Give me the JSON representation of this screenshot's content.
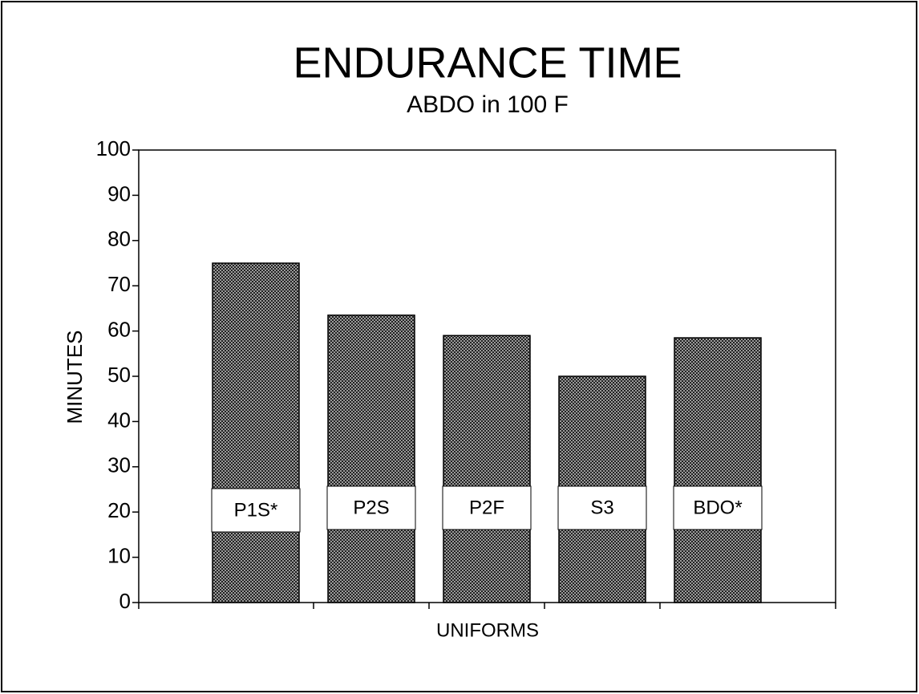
{
  "chart_data": {
    "type": "bar",
    "title": "ENDURANCE TIME",
    "subtitle": "ABDO in 100 F",
    "y_label": "MINUTES",
    "x_label": "UNIFORMS",
    "categories": [
      "P1S*",
      "P2S",
      "P2F",
      "S3",
      "BDO*"
    ],
    "values": [
      75,
      63.5,
      59,
      50,
      58.5
    ],
    "color": "#4a4a4a",
    "ylim": [
      0,
      100
    ],
    "yticks": [
      0,
      10,
      20,
      30,
      40,
      50,
      60,
      70,
      80,
      90,
      100
    ]
  }
}
